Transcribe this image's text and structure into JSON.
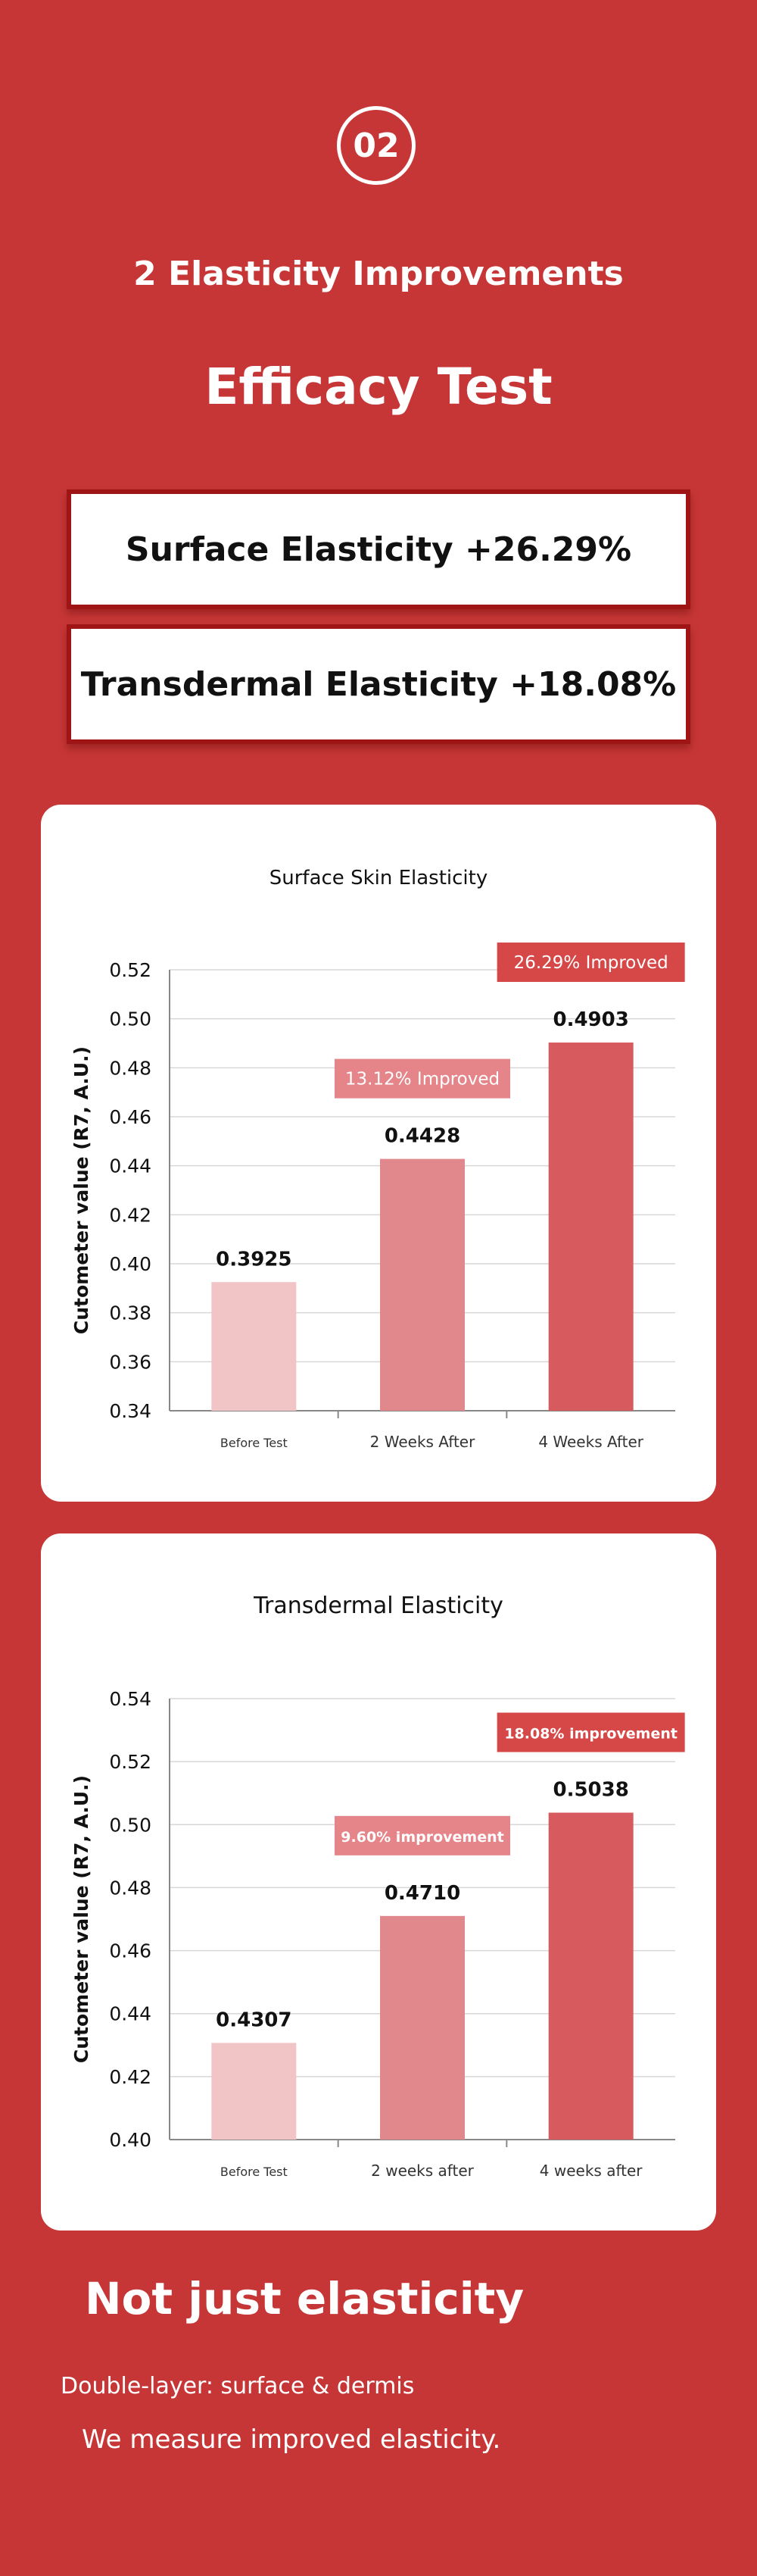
{
  "section_number": "02",
  "subtitle": "2 Elasticity Improvements",
  "title": "Efficacy Test",
  "highlights": [
    "Surface Elasticity +26.29%",
    "Transdermal Elasticity +18.08%"
  ],
  "colors": {
    "background": "#c73636",
    "bar_light": "#f1c4c6",
    "bar_mid": "#e0888c",
    "bar_dark": "#d75a5e",
    "badge_mid": "#e5858a",
    "badge_dark": "#d64747"
  },
  "chart_data": [
    {
      "type": "bar",
      "title": "Surface Skin Elasticity",
      "ylabel": "Cutometer value (R7, A.U.)",
      "xlabel": "",
      "categories": [
        "Before Test",
        "2 Weeks After",
        "4 Weeks After"
      ],
      "values": [
        0.3925,
        0.4428,
        0.4903
      ],
      "value_labels": [
        "0.3925",
        "0.4428",
        "0.4903"
      ],
      "ylim": [
        0.34,
        0.52
      ],
      "yticks": [
        "0.34",
        "0.36",
        "0.38",
        "0.40",
        "0.42",
        "0.44",
        "0.46",
        "0.48",
        "0.50",
        "0.52"
      ],
      "grid": true,
      "annotations": [
        "13.12% Improved",
        "26.29% Improved"
      ]
    },
    {
      "type": "bar",
      "title": "Transdermal Elasticity",
      "ylabel": "Cutometer value (R7, A.U.)",
      "xlabel": "",
      "categories": [
        "Before Test",
        "2 weeks after",
        "4 weeks after"
      ],
      "values": [
        0.4307,
        0.471,
        0.5038
      ],
      "value_labels": [
        "0.4307",
        "0.4710",
        "0.5038"
      ],
      "ylim": [
        0.4,
        0.54
      ],
      "yticks": [
        "0.40",
        "0.42",
        "0.44",
        "0.46",
        "0.48",
        "0.50",
        "0.52",
        "0.54"
      ],
      "grid": true,
      "annotations": [
        "9.60% improvement",
        "18.08% improvement"
      ]
    }
  ],
  "bottom": {
    "title": "Not just elasticity",
    "line1": "Double-layer: surface & dermis",
    "line2": "We measure improved elasticity."
  }
}
